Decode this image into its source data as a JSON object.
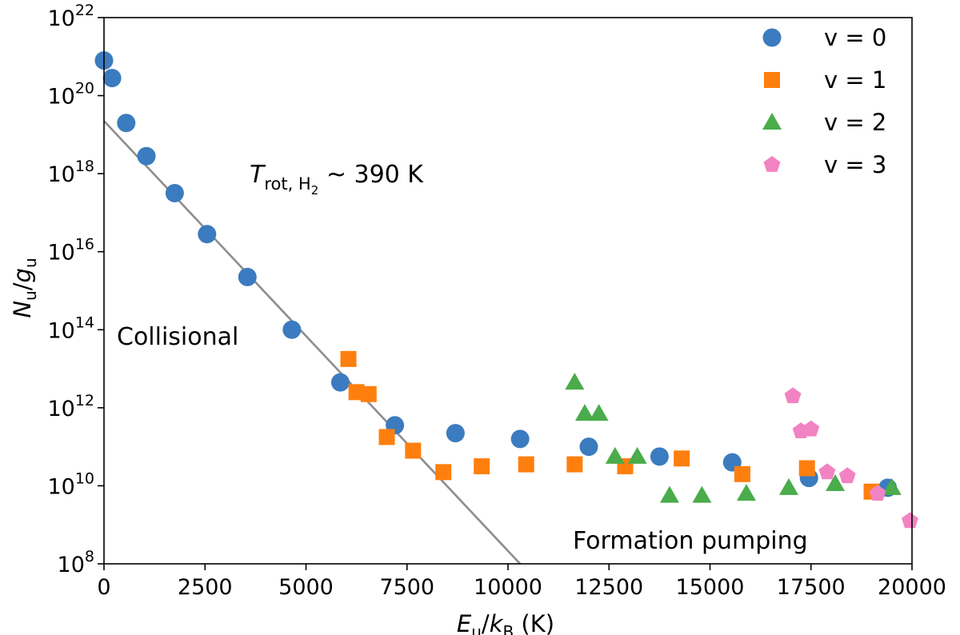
{
  "chart_data": {
    "type": "scatter",
    "xlabel": {
      "main": "E",
      "sub": "u",
      "sep": "/",
      "main2": "k",
      "sub2": "B",
      "unit": " (K)"
    },
    "ylabel": {
      "main": "N",
      "sub": "u",
      "sep": "/",
      "main2": "g",
      "sub2": "u"
    },
    "xlim": [
      0,
      20000
    ],
    "ylim_log10": [
      8,
      22
    ],
    "y_scale": "log",
    "x_ticks": [
      0,
      2500,
      5000,
      7500,
      10000,
      12500,
      15000,
      17500,
      20000
    ],
    "x_tick_labels": [
      "0",
      "2500",
      "5000",
      "7500",
      "10000",
      "12500",
      "15000",
      "17500",
      "20000"
    ],
    "y_tick_exponents": [
      8,
      10,
      12,
      14,
      16,
      18,
      20,
      22
    ],
    "y_tick_base": "10",
    "legend_position": "top-right",
    "series": [
      {
        "name": "v = 0",
        "marker": "circle",
        "color": "#3b7bbf",
        "points": [
          [
            0,
            20.9
          ],
          [
            200,
            20.45
          ],
          [
            550,
            19.3
          ],
          [
            1050,
            18.45
          ],
          [
            1750,
            17.5
          ],
          [
            2550,
            16.45
          ],
          [
            3550,
            15.35
          ],
          [
            4650,
            14.0
          ],
          [
            5850,
            12.65
          ],
          [
            7200,
            11.55
          ],
          [
            8700,
            11.35
          ],
          [
            10300,
            11.2
          ],
          [
            12000,
            11.0
          ],
          [
            13750,
            10.75
          ],
          [
            15550,
            10.6
          ],
          [
            17450,
            10.2
          ],
          [
            19400,
            9.95
          ]
        ]
      },
      {
        "name": "v = 1",
        "marker": "square",
        "color": "#ff7f0e",
        "points": [
          [
            6050,
            13.25
          ],
          [
            6250,
            12.4
          ],
          [
            6550,
            12.35
          ],
          [
            7000,
            11.25
          ],
          [
            7650,
            10.9
          ],
          [
            8400,
            10.35
          ],
          [
            9350,
            10.5
          ],
          [
            10450,
            10.55
          ],
          [
            11650,
            10.55
          ],
          [
            12900,
            10.5
          ],
          [
            14300,
            10.7
          ],
          [
            15800,
            10.3
          ],
          [
            17400,
            10.45
          ],
          [
            19000,
            9.85
          ]
        ]
      },
      {
        "name": "v = 2",
        "marker": "triangle",
        "color": "#4aac4a",
        "points": [
          [
            11650,
            12.65
          ],
          [
            11900,
            11.85
          ],
          [
            12250,
            11.85
          ],
          [
            12650,
            10.75
          ],
          [
            13200,
            10.75
          ],
          [
            14000,
            9.75
          ],
          [
            14800,
            9.75
          ],
          [
            15900,
            9.8
          ],
          [
            16950,
            9.95
          ],
          [
            18100,
            10.05
          ],
          [
            19500,
            9.95
          ]
        ]
      },
      {
        "name": "v = 3",
        "marker": "pentagon",
        "color": "#f283c3",
        "points": [
          [
            17050,
            12.3
          ],
          [
            17250,
            11.4
          ],
          [
            17500,
            11.45
          ],
          [
            17900,
            10.35
          ],
          [
            18400,
            10.25
          ],
          [
            19150,
            9.8
          ],
          [
            19950,
            9.1
          ]
        ]
      }
    ],
    "fit_line": {
      "color": "#8c8c8c",
      "points": [
        [
          0,
          19.35
        ],
        [
          10300,
          8.0
        ]
      ],
      "label": {
        "prefix": "T",
        "sub": "rot, H",
        "sub2": "2",
        "suffix": " ~ 390 K"
      }
    },
    "annotations": [
      "Collisional",
      "Formation pumping"
    ]
  }
}
